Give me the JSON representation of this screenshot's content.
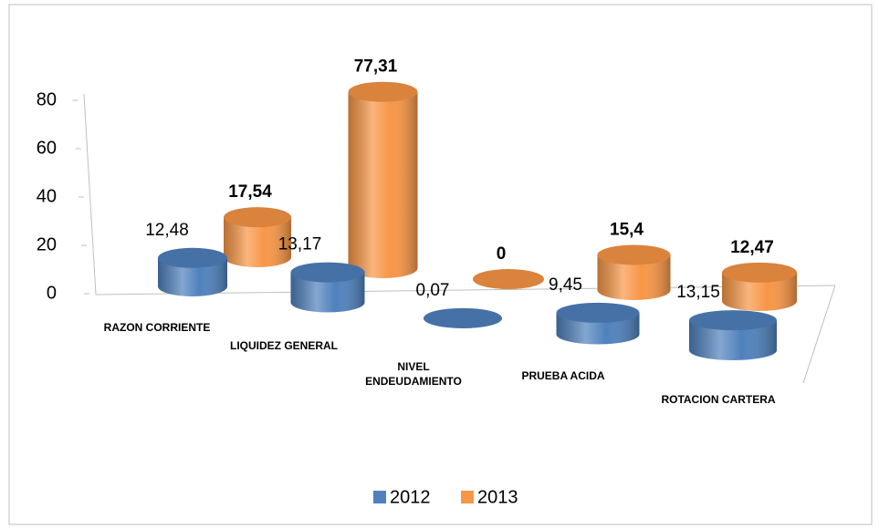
{
  "chart_data": {
    "type": "bar3d",
    "categories": [
      "RAZON CORRIENTE",
      "LIQUIDEZ GENERAL",
      "NIVEL ENDEUDAMIENTO",
      "PRUEBA ACIDA",
      "ROTACION CARTERA"
    ],
    "series": [
      {
        "name": "2012",
        "color": "#4f81bd",
        "values": [
          12.48,
          13.17,
          0.07,
          9.45,
          13.15
        ],
        "value_labels": [
          "12,48",
          "13,17",
          "0,07",
          "9,45",
          "13,15"
        ]
      },
      {
        "name": "2013",
        "color": "#f79646",
        "values": [
          17.54,
          77.31,
          0,
          15.4,
          12.47
        ],
        "value_labels": [
          "17,54",
          "77,31",
          "0",
          "15,4",
          "12,47"
        ]
      }
    ],
    "ylim": [
      0,
      80
    ],
    "yticks": [
      0,
      20,
      40,
      60,
      80
    ],
    "legend": "bottom"
  }
}
